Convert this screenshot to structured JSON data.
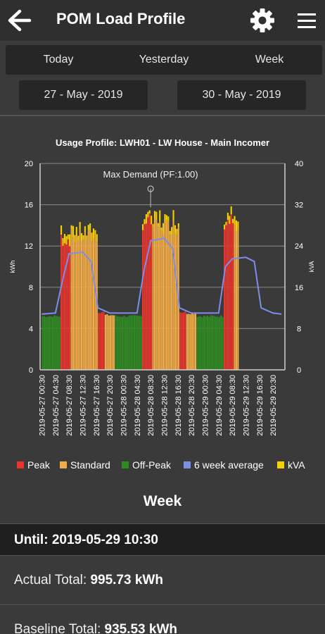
{
  "app_bar": {
    "title": "POM Load Profile",
    "icons": {
      "back": "arrow-left-icon",
      "settings": "gear-icon",
      "menu": "hamburger-icon"
    }
  },
  "range_tabs": [
    "Today",
    "Yesterday",
    "Week"
  ],
  "dates": {
    "start": "27 - May - 2019",
    "end": "30 - May - 2019"
  },
  "colors": {
    "background": "#3a3a3a",
    "peak": "#e8352d",
    "standard": "#f2ac47",
    "off_peak": "#2f8a22",
    "avg_line": "#7b8ee8",
    "kva": "#f5d000"
  },
  "chart_data": {
    "type": "bar",
    "title": "Usage Profile: LWH01 - LW House - Main Incomer",
    "ylabel_left": "kWh",
    "ylabel_right": "kVA",
    "y_left_ticks": [
      "0",
      "4",
      "8",
      "12",
      "16",
      "20"
    ],
    "y_right_ticks": [
      "0",
      "8",
      "16",
      "24",
      "32",
      "40"
    ],
    "ylim_left": [
      0,
      20
    ],
    "ylim_right": [
      0,
      40
    ],
    "x_tick_labels": [
      "2019-05-27 00:30",
      "2019-05-27 04:30",
      "2019-05-27 08:30",
      "2019-05-27 12:30",
      "2019-05-27 16:30",
      "2019-05-27 20:30",
      "2019-05-28 00:30",
      "2019-05-28 04:30",
      "2019-05-28 08:30",
      "2019-05-28 12:30",
      "2019-05-28 16:30",
      "2019-05-28 20:30",
      "2019-05-29 00:30",
      "2019-05-29 04:30",
      "2019-05-29 08:30",
      "2019-05-29 12:30",
      "2019-05-29 16:30",
      "2019-05-29 20:30"
    ],
    "annotation": "Max Demand (PF:1.00)",
    "legend": [
      "Peak",
      "Standard",
      "Off-Peak",
      "6 week average",
      "kVA"
    ],
    "legend_position": "bottom",
    "grid": true,
    "segments": [
      {
        "from": "2019-05-27 00:30",
        "to": "2019-05-27 06:00",
        "tariff": "Off-Peak",
        "kwh": 5.2
      },
      {
        "from": "2019-05-27 06:00",
        "to": "2019-05-27 09:00",
        "tariff": "Peak",
        "kwh": 12.8
      },
      {
        "from": "2019-05-27 09:00",
        "to": "2019-05-27 17:00",
        "tariff": "Standard",
        "kwh": 13.0
      },
      {
        "from": "2019-05-27 17:00",
        "to": "2019-05-27 19:00",
        "tariff": "Peak",
        "kwh": 5.6
      },
      {
        "from": "2019-05-27 19:00",
        "to": "2019-05-27 22:00",
        "tariff": "Standard",
        "kwh": 5.3
      },
      {
        "from": "2019-05-27 22:00",
        "to": "2019-05-28 06:00",
        "tariff": "Off-Peak",
        "kwh": 5.2
      },
      {
        "from": "2019-05-28 06:00",
        "to": "2019-05-28 09:00",
        "tariff": "Peak",
        "kwh": 14.5
      },
      {
        "from": "2019-05-28 09:00",
        "to": "2019-05-28 17:00",
        "tariff": "Standard",
        "kwh": 14.0
      },
      {
        "from": "2019-05-28 17:00",
        "to": "2019-05-28 19:00",
        "tariff": "Peak",
        "kwh": 5.6
      },
      {
        "from": "2019-05-28 19:00",
        "to": "2019-05-28 22:00",
        "tariff": "Standard",
        "kwh": 5.5
      },
      {
        "from": "2019-05-28 22:00",
        "to": "2019-05-29 06:00",
        "tariff": "Off-Peak",
        "kwh": 5.2
      },
      {
        "from": "2019-05-29 06:00",
        "to": "2019-05-29 09:00",
        "tariff": "Peak",
        "kwh": 14.5
      },
      {
        "from": "2019-05-29 09:00",
        "to": "2019-05-29 10:30",
        "tariff": "Standard",
        "kwh": 13.5
      }
    ],
    "average_kva": [
      {
        "x": "2019-05-27 00:30",
        "y": 10.8
      },
      {
        "x": "2019-05-27 04:30",
        "y": 11.0
      },
      {
        "x": "2019-05-27 06:30",
        "y": 17.0
      },
      {
        "x": "2019-05-27 08:30",
        "y": 22.5
      },
      {
        "x": "2019-05-27 12:30",
        "y": 22.8
      },
      {
        "x": "2019-05-27 15:00",
        "y": 21.0
      },
      {
        "x": "2019-05-27 17:00",
        "y": 12.0
      },
      {
        "x": "2019-05-27 20:30",
        "y": 11.0
      },
      {
        "x": "2019-05-28 04:30",
        "y": 11.0
      },
      {
        "x": "2019-05-28 06:30",
        "y": 19.0
      },
      {
        "x": "2019-05-28 08:30",
        "y": 25.0
      },
      {
        "x": "2019-05-28 12:30",
        "y": 25.5
      },
      {
        "x": "2019-05-28 15:00",
        "y": 23.5
      },
      {
        "x": "2019-05-28 17:00",
        "y": 12.0
      },
      {
        "x": "2019-05-28 20:30",
        "y": 11.0
      },
      {
        "x": "2019-05-29 04:30",
        "y": 11.0
      },
      {
        "x": "2019-05-29 06:30",
        "y": 20.0
      },
      {
        "x": "2019-05-29 08:30",
        "y": 21.5
      },
      {
        "x": "2019-05-29 12:30",
        "y": 21.8
      },
      {
        "x": "2019-05-29 15:00",
        "y": 21.0
      },
      {
        "x": "2019-05-29 17:00",
        "y": 12.0
      },
      {
        "x": "2019-05-29 20:30",
        "y": 11.0
      },
      {
        "x": "2019-05-29 23:00",
        "y": 10.8
      }
    ],
    "max_demand": {
      "x": "2019-05-28 08:30",
      "kva": 31.5
    }
  },
  "summary": {
    "heading": "Week",
    "until": "Until: 2019-05-29 10:30",
    "actual_label": "Actual Total:",
    "actual_value": "995.73 kWh",
    "baseline_label": "Baseline Total:",
    "baseline_value": "935.53 kWh"
  }
}
